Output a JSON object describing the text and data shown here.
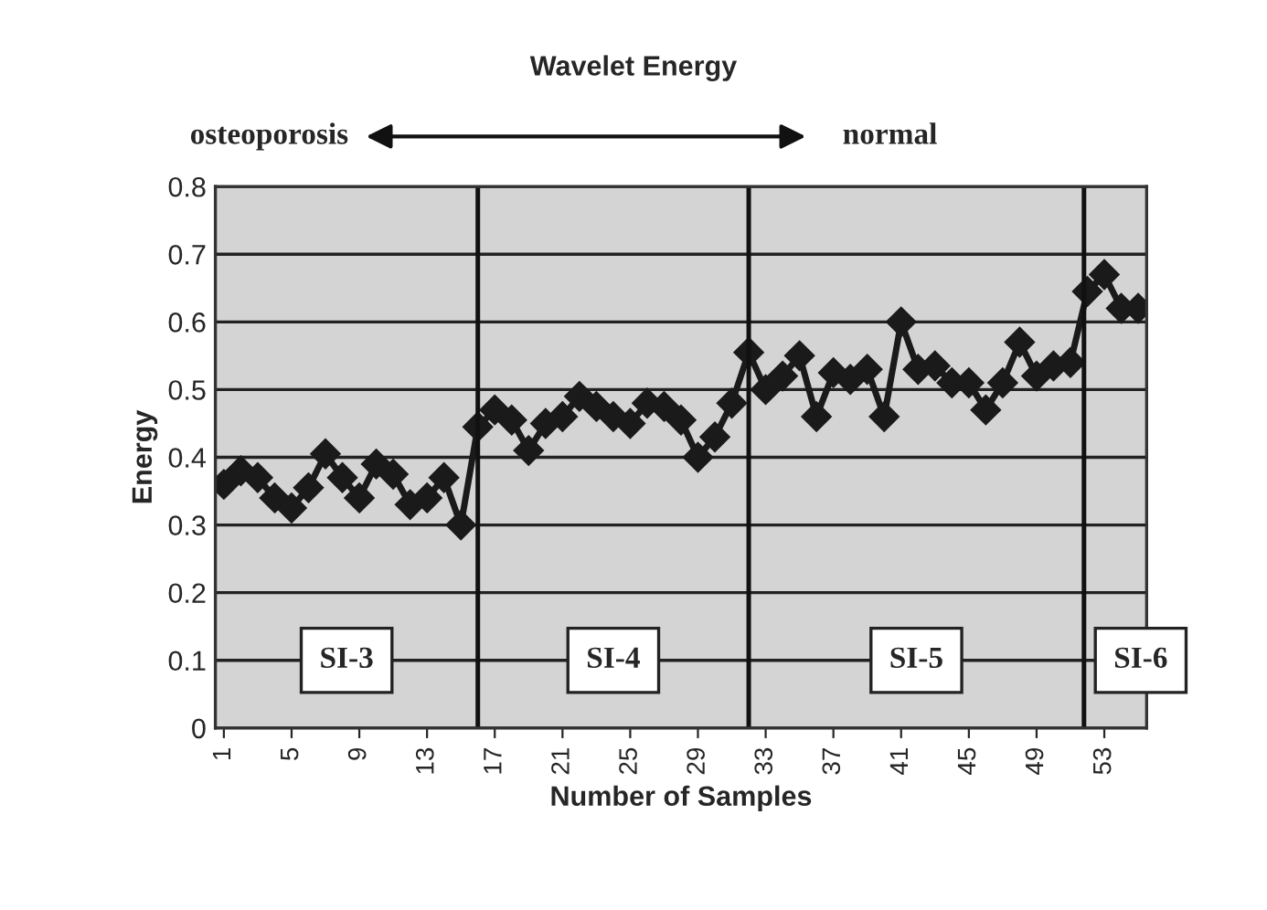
{
  "chart_data": {
    "type": "line",
    "title": "Wavelet Energy",
    "xlabel": "Number of Samples",
    "ylabel": "Energy",
    "x": [
      1,
      2,
      3,
      4,
      5,
      6,
      7,
      8,
      9,
      10,
      11,
      12,
      13,
      14,
      15,
      16,
      17,
      18,
      19,
      20,
      21,
      22,
      23,
      24,
      25,
      26,
      27,
      28,
      29,
      30,
      31,
      32,
      33,
      34,
      35,
      36,
      37,
      38,
      39,
      40,
      41,
      42,
      43,
      44,
      45,
      46,
      47,
      48,
      49,
      50,
      51,
      52,
      53,
      54,
      55
    ],
    "series": [
      {
        "color": "#1a1a1a",
        "values": [
          0.36,
          0.38,
          0.37,
          0.34,
          0.325,
          0.355,
          0.405,
          0.37,
          0.34,
          0.39,
          0.375,
          0.33,
          0.34,
          0.37,
          0.3,
          0.445,
          0.47,
          0.455,
          0.41,
          0.45,
          0.46,
          0.49,
          0.475,
          0.46,
          0.45,
          0.48,
          0.475,
          0.455,
          0.4,
          0.43,
          0.48,
          0.555,
          0.5,
          0.52,
          0.55,
          0.46,
          0.525,
          0.515,
          0.53,
          0.46,
          0.6,
          0.53,
          0.535,
          0.51,
          0.51,
          0.47,
          0.51,
          0.57,
          0.52,
          0.535,
          0.54,
          0.645,
          0.67,
          0.62,
          0.62
        ]
      }
    ],
    "xlim": [
      0.5,
      55.5
    ],
    "xticks": [
      1,
      5,
      9,
      13,
      17,
      21,
      25,
      29,
      33,
      37,
      41,
      45,
      49,
      53
    ],
    "ylim": [
      0,
      0.8
    ],
    "yticks": [
      0,
      0.1,
      0.2,
      0.3,
      0.4,
      0.5,
      0.6,
      0.7,
      0.8
    ],
    "grid": "y",
    "marker": "diamond",
    "line_style": "solid",
    "ref_lines": [
      {
        "axis": "x",
        "value": 16
      },
      {
        "axis": "x",
        "value": 32
      },
      {
        "axis": "x",
        "value": 51.8
      }
    ],
    "annotations": [
      "osteoporosis",
      "normal",
      "SI-3",
      "SI-4",
      "SI-5",
      "SI-6"
    ]
  }
}
